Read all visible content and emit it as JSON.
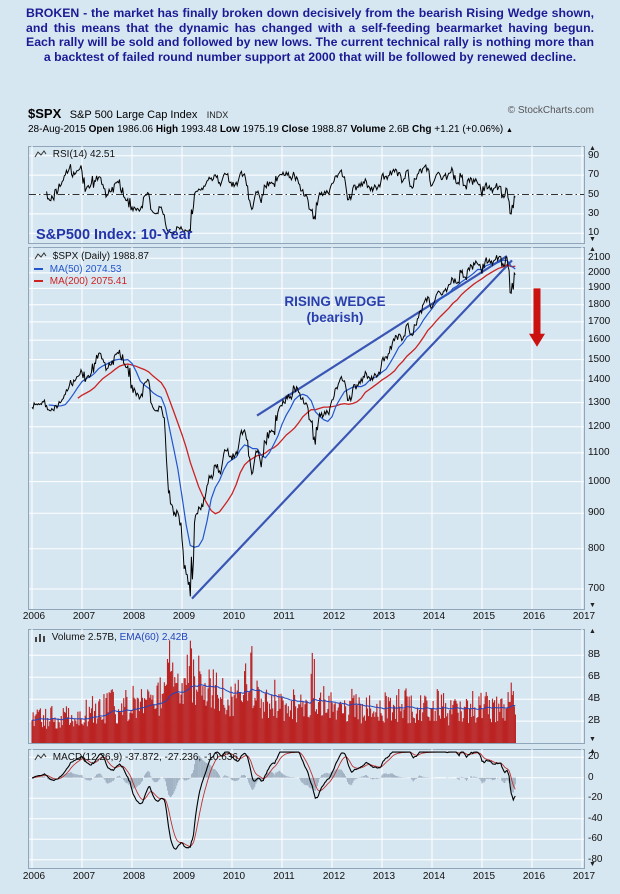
{
  "annotation": {
    "text": "BROKEN - the market has finally broken down decisively from the bearish Rising Wedge shown, and this means that the dynamic has changed with a self-feeding bearmarket having begun. Each rally will be sold and followed by new lows. The current technical rally is nothing more than a backtest of failed round number support at 2000 that will be followed by renewed decline."
  },
  "header": {
    "symbol": "$SPX",
    "name": "S&P 500 Large Cap Index",
    "exchange": "INDX",
    "copyright": "© StockCharts.com",
    "date": "28-Aug-2015",
    "quote": [
      {
        "label": "Open",
        "value": "1986.06"
      },
      {
        "label": "High",
        "value": "1993.48"
      },
      {
        "label": "Low",
        "value": "1975.19"
      },
      {
        "label": "Close",
        "value": "1988.87"
      },
      {
        "label": "Volume",
        "value": "2.6B"
      },
      {
        "label": "Chg",
        "value": "+1.21 (+0.06%)"
      }
    ],
    "change_icon": "▲"
  },
  "panels": {
    "rsi": {
      "label": "RSI(14) 42.51"
    },
    "main": {
      "series_label": "$SPX (Daily) 1988.87",
      "ma50_label": "MA(50) 2074.53",
      "ma200_label": "MA(200) 2075.41"
    },
    "volume": {
      "label": "Volume 2.57B,",
      "ema_label": "EMA(60) 2.42B"
    },
    "macd": {
      "name": "MACD(12,26,9)",
      "v1": "-37.872,",
      "v2": "-27.236,",
      "v3": "-10.636"
    }
  },
  "main_annotations": {
    "title": "S&P500 Index: 10-Year",
    "wedge_line1": "RISING WEDGE",
    "wedge_line2": "(bearish)"
  },
  "colors": {
    "background": "#d7e7f2",
    "grid": "#ffffff",
    "price": "#000000",
    "ma50": "#2255cc",
    "ma200": "#cc2222",
    "volume_bars": "#bb2222",
    "volume_ema": "#2244bb",
    "macd_line": "#000000",
    "macd_signal": "#bb3333",
    "macd_hist": "#94a6b8",
    "wedge": "#3a56b4",
    "arrow": "#cc1111",
    "annotation_text": "#1b1b94",
    "title_text": "#2233aa"
  },
  "chart_data": {
    "type": "line",
    "title": "S&P500 Index: 10-Year",
    "x_axis": {
      "years": [
        "2006",
        "2007",
        "2008",
        "2009",
        "2010",
        "2011",
        "2012",
        "2013",
        "2014",
        "2015",
        "2016",
        "2017"
      ]
    },
    "price_panel": {
      "scale": "log",
      "ylim": [
        655,
        2180
      ],
      "yticks": [
        2100,
        2000,
        1900,
        1800,
        1700,
        1600,
        1500,
        1400,
        1300,
        1200,
        1100,
        1000,
        900,
        800,
        700
      ],
      "last_close": 1988.87,
      "series": [
        {
          "name": "$SPX monthly close (Jan 2006 - Aug 2015, incl. Aug low)",
          "color": "#000000",
          "values": [
            1280,
            1294,
            1295,
            1311,
            1270,
            1270,
            1277,
            1304,
            1336,
            1378,
            1401,
            1418,
            1438,
            1407,
            1421,
            1482,
            1531,
            1503,
            1455,
            1474,
            1527,
            1549,
            1481,
            1468,
            1379,
            1331,
            1323,
            1386,
            1400,
            1280,
            1267,
            1283,
            1166,
            969,
            896,
            903,
            826,
            735,
            683,
            873,
            919,
            919,
            987,
            1021,
            1057,
            1036,
            1096,
            1115,
            1074,
            1104,
            1169,
            1187,
            1089,
            1031,
            1102,
            1049,
            1141,
            1183,
            1181,
            1258,
            1286,
            1327,
            1326,
            1364,
            1345,
            1321,
            1292,
            1219,
            1131,
            1253,
            1247,
            1258,
            1312,
            1366,
            1408,
            1398,
            1310,
            1362,
            1379,
            1407,
            1441,
            1412,
            1416,
            1426,
            1498,
            1515,
            1569,
            1598,
            1631,
            1606,
            1686,
            1633,
            1682,
            1757,
            1806,
            1848,
            1783,
            1859,
            1872,
            1884,
            1924,
            1960,
            1931,
            2003,
            1972,
            2018,
            2068,
            2059,
            1995,
            2105,
            2068,
            2086,
            2107,
            2063,
            2104,
            1870,
            1989
          ]
        },
        {
          "name": "MA(50)",
          "color": "#2255cc",
          "last": 2074.53,
          "derived": "moving average of close"
        },
        {
          "name": "MA(200)",
          "color": "#cc2222",
          "last": 2075.41,
          "derived": "moving average of close"
        }
      ]
    },
    "rsi_panel": {
      "name": "RSI(14)",
      "period": 14,
      "last": 42.51,
      "yticks": [
        90,
        70,
        50,
        30,
        10
      ],
      "reference": 50,
      "derived": "RSI of close series"
    },
    "volume_panel": {
      "name": "Volume",
      "unit": "B shares",
      "last": 2.57,
      "ema60_last": 2.42,
      "yticks": [
        8,
        6,
        4,
        2
      ],
      "values": [
        2.2,
        2.1,
        2.3,
        2.2,
        2.5,
        2.4,
        2.2,
        2.3,
        2.4,
        2.5,
        2.4,
        2.3,
        2.5,
        2.7,
        2.9,
        2.6,
        2.8,
        3.0,
        3.4,
        3.6,
        2.9,
        3.0,
        3.3,
        2.9,
        3.6,
        3.4,
        3.8,
        3.4,
        3.3,
        3.6,
        4.5,
        3.8,
        5.2,
        6.4,
        5.3,
        4.7,
        5.0,
        5.6,
        6.6,
        5.9,
        5.5,
        4.9,
        4.6,
        4.7,
        4.4,
        4.5,
        4.0,
        3.7,
        4.0,
        3.9,
        4.1,
        5.0,
        6.2,
        4.9,
        4.3,
        3.8,
        3.7,
        3.8,
        3.9,
        3.4,
        3.6,
        3.3,
        3.5,
        3.1,
        3.4,
        3.5,
        3.8,
        5.8,
        4.6,
        4.0,
        3.7,
        3.3,
        3.3,
        3.4,
        3.3,
        3.2,
        3.5,
        3.3,
        2.9,
        2.6,
        2.9,
        2.9,
        3.0,
        3.1,
        3.2,
        3.1,
        3.0,
        3.2,
        3.3,
        3.5,
        3.0,
        2.9,
        3.1,
        3.1,
        2.9,
        2.9,
        3.2,
        3.4,
        3.3,
        3.3,
        2.9,
        2.8,
        3.0,
        2.7,
        3.2,
        3.8,
        3.2,
        3.3,
        3.5,
        3.4,
        3.4,
        3.3,
        3.1,
        3.3,
        3.2,
        3.9,
        2.6
      ]
    },
    "macd_panel": {
      "name": "MACD",
      "params": [
        12,
        26,
        9
      ],
      "last": [
        -37.872,
        -27.236,
        -10.636
      ],
      "yticks": [
        20,
        0,
        -20,
        -40,
        -60,
        -80
      ],
      "derived": "MACD of close series"
    },
    "wedge": {
      "label": "RISING WEDGE (bearish)",
      "lower": [
        [
          2009.2,
          678
        ],
        [
          2015.6,
          2085
        ]
      ],
      "upper": [
        [
          2010.5,
          1245
        ],
        [
          2015.5,
          2115
        ]
      ]
    },
    "breakdown_arrow": {
      "x": 2016.1,
      "from": 1900,
      "to": 1565
    }
  }
}
